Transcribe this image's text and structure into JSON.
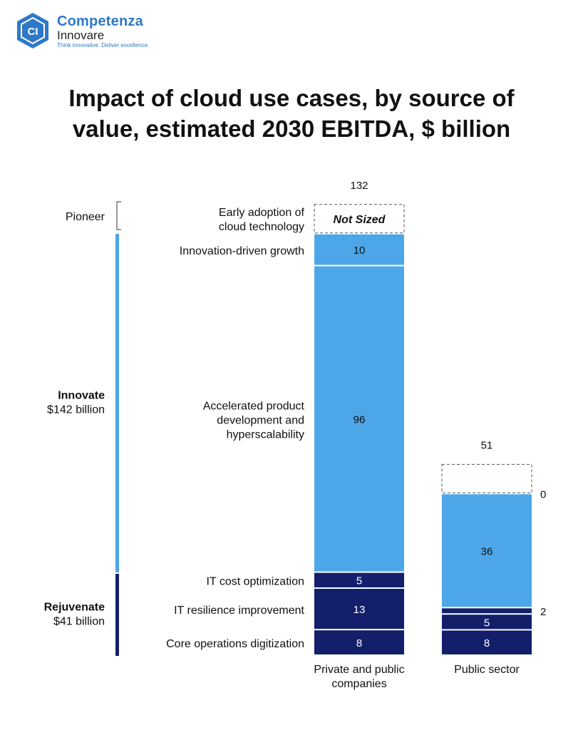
{
  "brand": {
    "name": "Competenza",
    "sub": "Innovare",
    "tagline": "Think innovative. Deliver excellence.",
    "logo_letters": "CI"
  },
  "title_lines": [
    "Impact of cloud use cases, by source of",
    "value, estimated 2030 EBITDA, $ billion"
  ],
  "colors": {
    "innovate": "#4da6e8",
    "rejuvenate": "#131f6b",
    "brand": "#2e78c7"
  },
  "chart_data": {
    "type": "bar",
    "stacked": true,
    "categories": [
      "Private and public companies",
      "Public sector"
    ],
    "category_label_lines": [
      [
        "Private and public",
        "companies"
      ],
      [
        "Public sector"
      ]
    ],
    "totals": [
      "132",
      "51"
    ],
    "segment_labels": [
      {
        "lines": [
          "Early adoption of",
          "cloud technology"
        ]
      },
      {
        "lines": [
          "Innovation-driven growth"
        ]
      },
      {
        "lines": [
          "Accelerated product",
          "development and",
          "hyperscalability"
        ]
      },
      {
        "lines": [
          "IT cost optimization"
        ]
      },
      {
        "lines": [
          "IT resilience improvement"
        ]
      },
      {
        "lines": [
          "Core operations digitization"
        ]
      }
    ],
    "series": [
      {
        "name": "Early adoption of cloud technology",
        "group": "Pioneer",
        "values": [
          null,
          0
        ],
        "value_labels": [
          "Not Sized",
          "0"
        ],
        "not_sized": true
      },
      {
        "name": "Innovation-driven growth",
        "group": "Innovate",
        "values": [
          10,
          0
        ],
        "value_labels": [
          "10",
          null
        ]
      },
      {
        "name": "Accelerated product development and hyperscalability",
        "group": "Innovate",
        "values": [
          96,
          36
        ],
        "value_labels": [
          "96",
          "36"
        ]
      },
      {
        "name": "IT cost optimization",
        "group": "Rejuvenate",
        "values": [
          5,
          2
        ],
        "value_labels": [
          "5",
          "2"
        ]
      },
      {
        "name": "IT resilience improvement",
        "group": "Rejuvenate",
        "values": [
          13,
          5
        ],
        "value_labels": [
          "13",
          "5"
        ]
      },
      {
        "name": "Core operations digitization",
        "group": "Rejuvenate",
        "values": [
          8,
          8
        ],
        "value_labels": [
          "8",
          "8"
        ]
      }
    ],
    "groups": [
      {
        "name": "Pioneer",
        "amount": ""
      },
      {
        "name": "Innovate",
        "amount": "$142 billion"
      },
      {
        "name": "Rejuvenate",
        "amount": "$41 billion"
      }
    ]
  }
}
